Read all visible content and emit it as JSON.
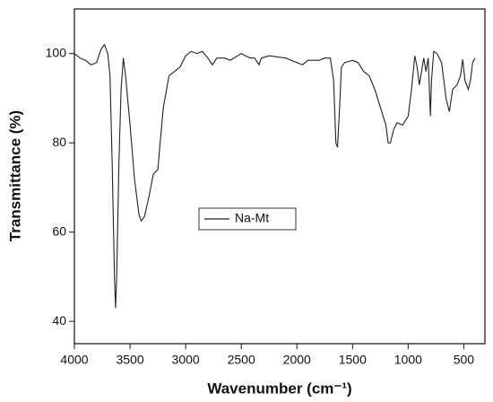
{
  "chart_data": {
    "type": "line",
    "xlabel": "Wavenumber (cm⁻¹)",
    "ylabel": "Transmittance (%)",
    "xlim": [
      4000,
      310
    ],
    "ylim": [
      35,
      110
    ],
    "xticks": [
      4000,
      3500,
      3000,
      2500,
      2000,
      1500,
      1000,
      500
    ],
    "yticks": [
      40,
      60,
      80,
      100
    ],
    "legend": "center",
    "x": [
      4000,
      3950,
      3900,
      3850,
      3800,
      3760,
      3730,
      3700,
      3680,
      3660,
      3640,
      3630,
      3620,
      3600,
      3580,
      3560,
      3540,
      3500,
      3460,
      3420,
      3400,
      3370,
      3330,
      3290,
      3250,
      3230,
      3200,
      3150,
      3100,
      3050,
      3000,
      2950,
      2900,
      2850,
      2800,
      2760,
      2720,
      2650,
      2600,
      2500,
      2420,
      2380,
      2340,
      2320,
      2250,
      2100,
      2000,
      1950,
      1900,
      1800,
      1750,
      1700,
      1670,
      1650,
      1635,
      1620,
      1600,
      1570,
      1500,
      1450,
      1400,
      1350,
      1300,
      1250,
      1200,
      1180,
      1160,
      1130,
      1100,
      1050,
      1000,
      970,
      940,
      920,
      900,
      880,
      860,
      840,
      820,
      800,
      790,
      770,
      740,
      700,
      660,
      630,
      600,
      560,
      530,
      510,
      490,
      460,
      440,
      420,
      400
    ],
    "series": [
      {
        "name": "Na-Mt",
        "color": "#222222",
        "values": [
          100,
          99,
          98.5,
          97.5,
          98,
          101,
          102,
          100,
          95,
          75,
          50,
          43,
          50,
          75,
          92,
          99,
          95,
          84,
          72,
          64,
          62.5,
          63.5,
          68,
          73,
          74,
          80,
          88,
          95,
          96,
          97,
          99.5,
          100.5,
          100,
          100.5,
          99,
          97.5,
          99,
          99,
          98.5,
          100,
          99,
          99,
          97.5,
          99,
          99.5,
          99,
          98,
          97.5,
          98.5,
          98.5,
          99,
          99,
          94,
          80,
          79,
          86,
          97,
          98,
          98.5,
          98,
          96,
          95,
          92,
          88,
          84,
          80,
          80,
          83,
          84.5,
          84,
          86,
          92,
          99.5,
          97,
          93,
          96,
          99,
          96,
          99,
          86,
          94,
          100.5,
          100,
          98,
          90,
          87,
          92,
          93,
          95,
          98.7,
          94,
          92,
          94,
          98,
          99
        ]
      }
    ]
  }
}
